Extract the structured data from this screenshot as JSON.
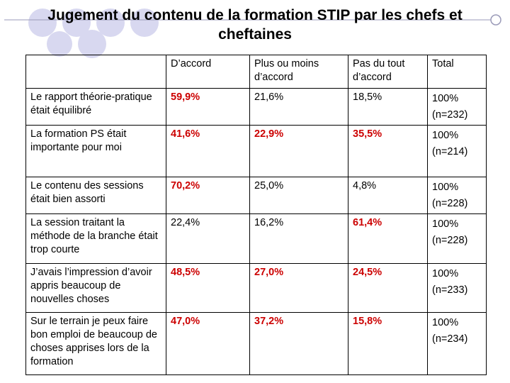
{
  "title": "Jugement du contenu de la formation STIP par les chefs et cheftaines",
  "theme": {
    "accent": "#d8d8f0",
    "highlight_text": "#cc0000"
  },
  "table": {
    "headers": [
      "",
      "D’accord",
      "Plus ou moins d’accord",
      "Pas du tout d’accord",
      "Total"
    ],
    "rows": [
      {
        "label": "Le rapport théorie-pratique était équilibré",
        "daccord": "59,9%",
        "plus_ou_moins": "21,6%",
        "pas_du_tout": "18,5%",
        "total": "100%",
        "n": "(n=232)"
      },
      {
        "label": "La formation PS était importante pour moi",
        "daccord": "41,6%",
        "plus_ou_moins": "22,9%",
        "pas_du_tout": "35,5%",
        "total": "100%",
        "n": "(n=214)"
      },
      {
        "label": "Le contenu des sessions était bien assorti",
        "daccord": "70,2%",
        "plus_ou_moins": "25,0%",
        "pas_du_tout": "4,8%",
        "total": "100%",
        "n": "(n=228)"
      },
      {
        "label": "La session traitant la méthode de la branche était trop courte",
        "daccord": "22,4%",
        "plus_ou_moins": "16,2%",
        "pas_du_tout": "61,4%",
        "total": "100%",
        "n": "(n=228)"
      },
      {
        "label": "J’avais l’impression d’avoir appris beaucoup de nouvelles choses",
        "daccord": "48,5%",
        "plus_ou_moins": "27,0%",
        "pas_du_tout": "24,5%",
        "total": "100%",
        "n": "(n=233)"
      },
      {
        "label": "Sur le terrain je peux faire bon emploi de beaucoup de choses apprises lors de la formation",
        "daccord": "47,0%",
        "plus_ou_moins": "37,2%",
        "pas_du_tout": "15,8%",
        "total": "100%",
        "n": "(n=234)"
      }
    ]
  }
}
